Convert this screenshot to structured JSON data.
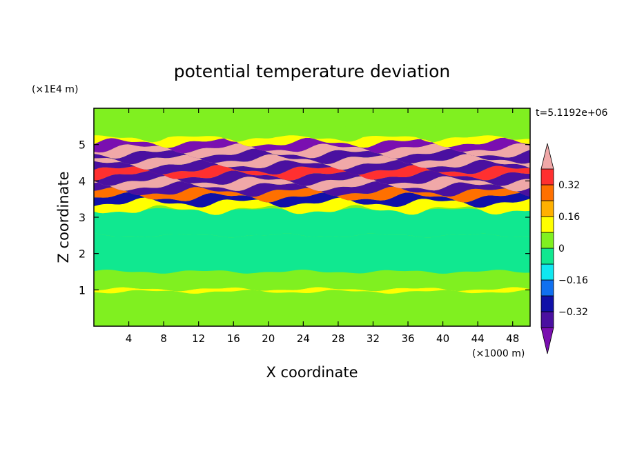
{
  "chart_data": {
    "type": "heatmap",
    "title": "potential temperature deviation",
    "xlabel": "X coordinate",
    "ylabel": "Z coordinate",
    "x_unit": "(×1000 m)",
    "y_unit": "(×1E4 m)",
    "time_label": "t=5.1192e+06",
    "xlim": [
      0,
      50
    ],
    "ylim": [
      0,
      6
    ],
    "x_ticks": [
      4,
      8,
      12,
      16,
      20,
      24,
      28,
      32,
      36,
      40,
      44,
      48
    ],
    "y_ticks": [
      1,
      2,
      3,
      4,
      5
    ],
    "colorbar": {
      "levels": [
        -0.4,
        -0.32,
        -0.24,
        -0.16,
        -0.08,
        0,
        0.08,
        0.16,
        0.24,
        0.32,
        0.4
      ],
      "labeled": [
        "0.32",
        "0.16",
        "0",
        "−0.16",
        "−0.32"
      ],
      "labeled_values": [
        0.32,
        0.16,
        0,
        -0.16,
        -0.32
      ],
      "colors": [
        "#7a0fb0",
        "#4a10a0",
        "#1010a8",
        "#1070f0",
        "#10e8f0",
        "#10e890",
        "#80f020",
        "#ffff00",
        "#ffb000",
        "#ff7000",
        "#ff3030",
        "#f0a8a8"
      ]
    },
    "bands": [
      {
        "z": [
          0.0,
          0.3
        ],
        "value": 0.03
      },
      {
        "z": [
          0.3,
          0.95
        ],
        "value": 0.0
      },
      {
        "z": [
          0.95,
          1.02
        ],
        "value": 0.1
      },
      {
        "z": [
          1.02,
          1.5
        ],
        "value": 0.02
      },
      {
        "z": [
          1.5,
          2.5
        ],
        "value": -0.02
      },
      {
        "z": [
          2.5,
          3.2
        ],
        "value": -0.01
      },
      {
        "z": [
          3.2,
          3.4
        ],
        "value": 0.15
      },
      {
        "z": [
          3.4,
          3.55
        ],
        "value": -0.3
      },
      {
        "z": [
          3.55,
          3.7
        ],
        "value": 0.3
      },
      {
        "z": [
          3.7,
          3.85
        ],
        "value": -0.35
      },
      {
        "z": [
          3.85,
          4.0
        ],
        "value": 0.42
      },
      {
        "z": [
          4.0,
          4.15
        ],
        "value": -0.38
      },
      {
        "z": [
          4.15,
          4.3
        ],
        "value": 0.36
      },
      {
        "z": [
          4.3,
          4.45
        ],
        "value": -0.4
      },
      {
        "z": [
          4.45,
          4.6
        ],
        "value": 0.4
      },
      {
        "z": [
          4.6,
          4.75
        ],
        "value": -0.35
      },
      {
        "z": [
          4.75,
          4.9
        ],
        "value": 0.42
      },
      {
        "z": [
          4.9,
          5.05
        ],
        "value": -0.42
      },
      {
        "z": [
          5.05,
          5.2
        ],
        "value": 0.1
      },
      {
        "z": [
          5.2,
          5.5
        ],
        "value": 0.02
      },
      {
        "z": [
          5.5,
          6.0
        ],
        "value": 0.04
      }
    ]
  }
}
